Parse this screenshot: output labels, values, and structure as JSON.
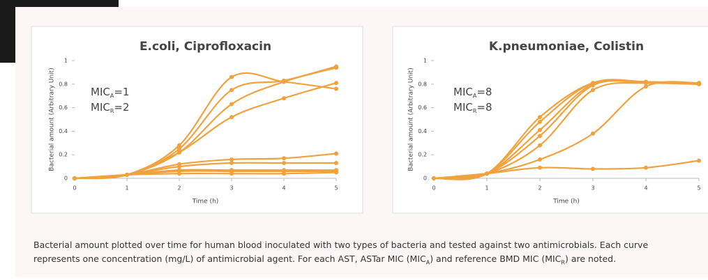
{
  "chart_data": [
    {
      "type": "line",
      "title": "E.coli, Ciprofloxacin",
      "xlabel": "Time (h)",
      "ylabel": "Bacterial amount (Arbitrary Unit)",
      "annotations": [
        [
          "MIC",
          "A",
          "=1"
        ],
        [
          "MIC",
          "R",
          "=2"
        ]
      ],
      "x": [
        0,
        1,
        2,
        3,
        4,
        5
      ],
      "xlim": [
        0,
        5
      ],
      "xticks": [
        0,
        1,
        2,
        3,
        4,
        5
      ],
      "ylim": [
        0,
        1
      ],
      "yticks": [
        0,
        0.2,
        0.4,
        0.6,
        0.8,
        1
      ],
      "color": "#f0a23f",
      "series": [
        {
          "values": [
            0,
            0.03,
            0.28,
            0.86,
            0.82,
            0.76
          ]
        },
        {
          "values": [
            0,
            0.03,
            0.25,
            0.75,
            0.83,
            0.95
          ]
        },
        {
          "values": [
            0,
            0.03,
            0.22,
            0.63,
            0.82,
            0.94
          ]
        },
        {
          "values": [
            0,
            0.03,
            0.22,
            0.52,
            0.68,
            0.81
          ]
        },
        {
          "values": [
            0,
            0.03,
            0.12,
            0.16,
            0.17,
            0.21
          ]
        },
        {
          "values": [
            0,
            0.03,
            0.1,
            0.13,
            0.13,
            0.13
          ]
        },
        {
          "values": [
            0,
            0.03,
            0.07,
            0.07,
            0.07,
            0.07
          ]
        },
        {
          "values": [
            0,
            0.03,
            0.06,
            0.06,
            0.06,
            0.06
          ]
        },
        {
          "values": [
            0,
            0.03,
            0.04,
            0.04,
            0.04,
            0.05
          ]
        }
      ]
    },
    {
      "type": "line",
      "title": "K.pneumoniae, Colistin",
      "xlabel": "Time (h)",
      "ylabel": "Bacterial amount (Arbitrary Unit)",
      "annotations": [
        [
          "MIC",
          "A",
          "=8"
        ],
        [
          "MIC",
          "R",
          "=8"
        ]
      ],
      "x": [
        0,
        1,
        2,
        3,
        4,
        5
      ],
      "xlim": [
        0,
        5
      ],
      "xticks": [
        0,
        1,
        2,
        3,
        4,
        5
      ],
      "ylim": [
        0,
        1
      ],
      "yticks": [
        0,
        0.2,
        0.4,
        0.6,
        0.8,
        1
      ],
      "color": "#f0a23f",
      "series": [
        {
          "values": [
            0,
            0.04,
            0.52,
            0.81,
            0.82,
            0.81
          ]
        },
        {
          "values": [
            0,
            0.04,
            0.48,
            0.81,
            0.82,
            0.8
          ]
        },
        {
          "values": [
            0,
            0.04,
            0.41,
            0.8,
            0.81,
            0.8
          ]
        },
        {
          "values": [
            0,
            0.04,
            0.36,
            0.79,
            0.81,
            0.8
          ]
        },
        {
          "values": [
            0,
            0.04,
            0.28,
            0.75,
            0.81,
            0.8
          ]
        },
        {
          "values": [
            0,
            0.04,
            0.16,
            0.38,
            0.78,
            0.81
          ]
        },
        {
          "values": [
            0,
            0.04,
            0.09,
            0.08,
            0.09,
            0.15
          ]
        }
      ]
    }
  ],
  "caption": [
    "Bacterial amount plotted over time for human blood inoculated with two types of bacteria and tested against two antimicrobials. Each curve represents one concentration (mg/L) of antimicrobial agent. For each AST, ASTar MIC (MIC",
    "A",
    ") and reference BMD MIC (MIC",
    "R",
    ") are noted."
  ]
}
